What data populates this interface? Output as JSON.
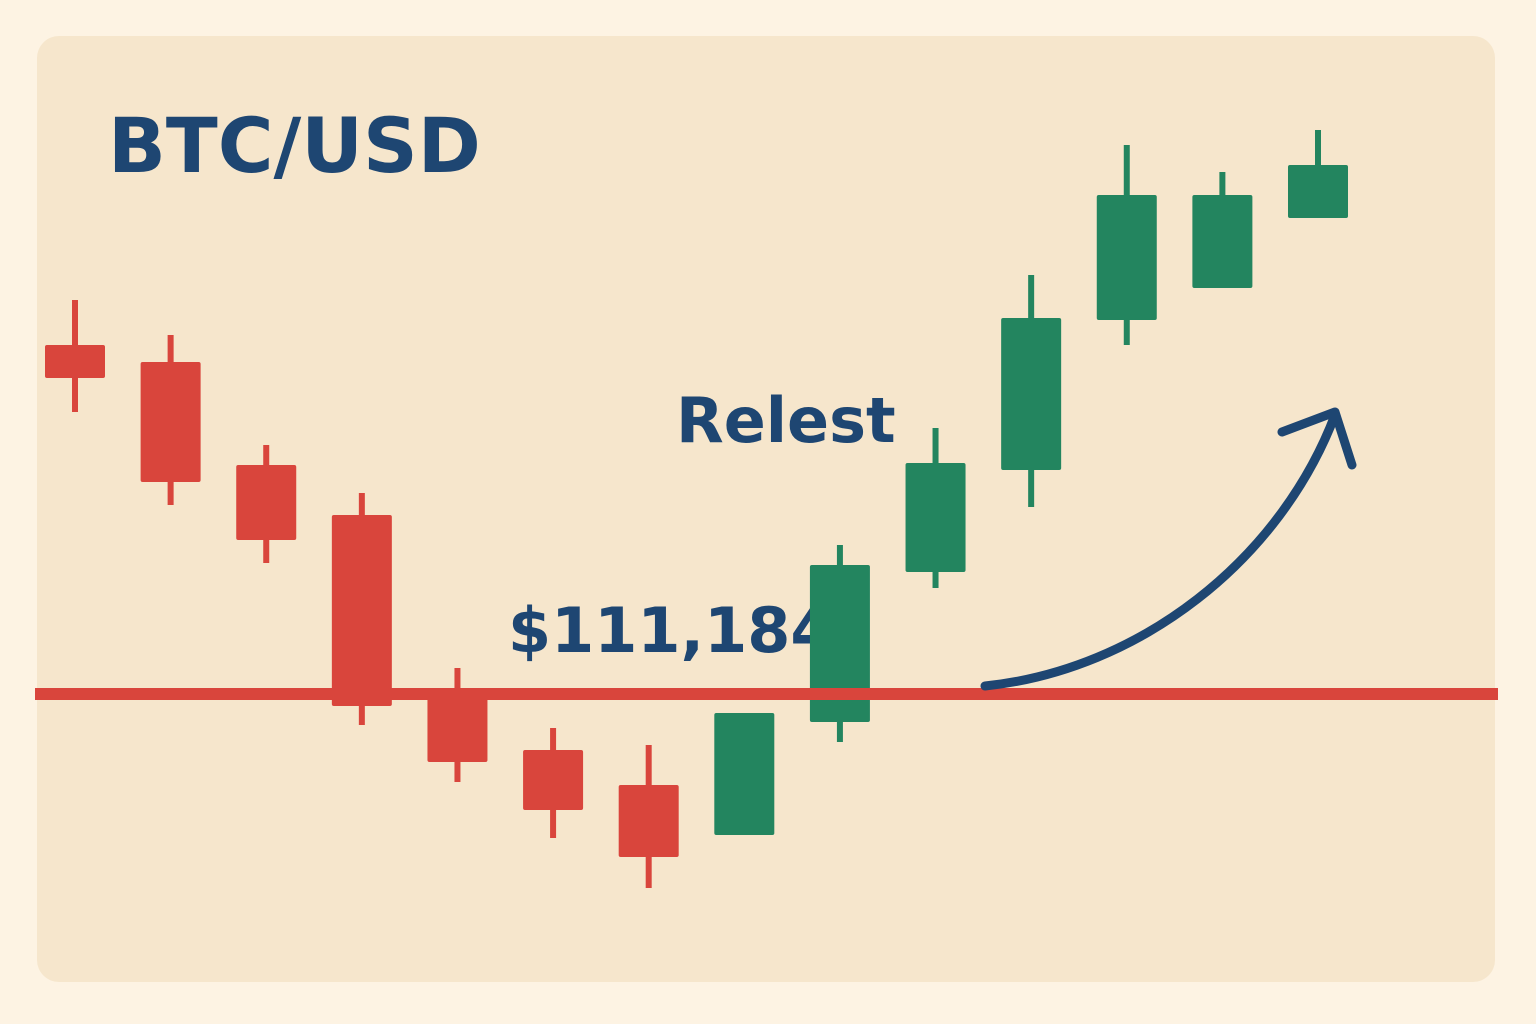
{
  "chart_data": {
    "type": "candlestick",
    "title": "BTC/USD",
    "annotation": "Relest",
    "open": [
      118164,
      117824,
      115764,
      114764,
      111304,
      110064,
      109364,
      108364,
      110624,
      113624,
      115664,
      118664,
      119304,
      120704
    ],
    "high": [
      119064,
      118364,
      116164,
      115204,
      111704,
      110504,
      110164,
      110804,
      114164,
      116504,
      119564,
      122164,
      121624,
      122464
    ],
    "low": [
      116824,
      114964,
      113804,
      110564,
      109424,
      108304,
      107304,
      108364,
      110224,
      113304,
      114924,
      118164,
      119304,
      120704
    ],
    "close": [
      117504,
      115424,
      114264,
      110944,
      109824,
      108864,
      107924,
      110804,
      113764,
      115804,
      118704,
      121164,
      121164,
      121764
    ],
    "up_color": "#23855f",
    "down_color": "#d9453c",
    "level": {
      "value": 111184,
      "label": "$111,184",
      "color": "#d9453c"
    },
    "ylim": [
      104584,
      125064
    ]
  }
}
